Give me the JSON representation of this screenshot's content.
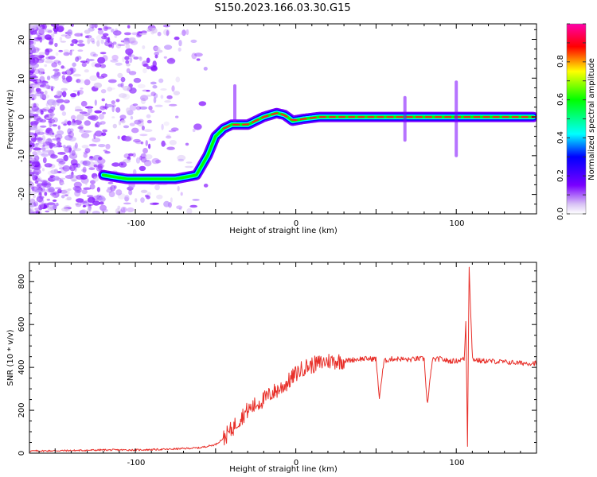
{
  "title": "S150.2023.166.03.30.G15",
  "chart_data": [
    {
      "type": "heatmap",
      "xlabel": "Height of straight line (km)",
      "ylabel": "Frequency (Hz)",
      "xlim": [
        -166,
        150
      ],
      "ylim": [
        -25,
        24
      ],
      "xticks": [
        -100,
        0,
        100
      ],
      "yticks": [
        -20,
        -10,
        0,
        10,
        20
      ],
      "colorbar": {
        "label": "Normalized spectral amplitude",
        "range": [
          0,
          1
        ],
        "ticks": [
          "0.0",
          "0.2",
          "0.4",
          "0.6",
          "0.8"
        ]
      },
      "ridge": {
        "x": [
          -120,
          -105,
          -90,
          -75,
          -62,
          -55,
          -50,
          -45,
          -40,
          -30,
          -20,
          -12,
          -7,
          -2,
          5,
          15,
          30,
          50,
          70,
          90,
          110,
          130,
          148
        ],
        "y": [
          -15,
          -16,
          -16,
          -16,
          -15,
          -10,
          -5,
          -3,
          -2,
          -2,
          0,
          1,
          0.5,
          -1,
          -0.5,
          0,
          0,
          0,
          0,
          0,
          0,
          0,
          0
        ]
      }
    },
    {
      "type": "line",
      "xlabel": "Height of straight line (km)",
      "ylabel": "SNR (10 * v/v)",
      "xlim": [
        -166,
        150
      ],
      "ylim": [
        0,
        890
      ],
      "xticks": [
        -100,
        0,
        100
      ],
      "yticks": [
        0,
        200,
        400,
        600,
        800
      ],
      "color": "#e8302a",
      "series": {
        "x": [
          -166,
          -140,
          -120,
          -100,
          -80,
          -60,
          -50,
          -45,
          -40,
          -35,
          -30,
          -25,
          -20,
          -15,
          -10,
          -5,
          0,
          5,
          10,
          15,
          20,
          25,
          30,
          35,
          40,
          45,
          50,
          52,
          55,
          60,
          65,
          70,
          75,
          80,
          82,
          85,
          90,
          95,
          100,
          105,
          106,
          107,
          108,
          110,
          115,
          120,
          130,
          140,
          150
        ],
        "y": [
          10,
          12,
          15,
          15,
          18,
          25,
          40,
          70,
          110,
          160,
          200,
          225,
          250,
          280,
          300,
          330,
          370,
          400,
          410,
          420,
          430,
          430,
          430,
          435,
          440,
          440,
          440,
          260,
          430,
          440,
          440,
          435,
          440,
          440,
          220,
          435,
          440,
          430,
          430,
          440,
          620,
          40,
          880,
          440,
          430,
          430,
          425,
          420,
          420
        ]
      }
    }
  ]
}
